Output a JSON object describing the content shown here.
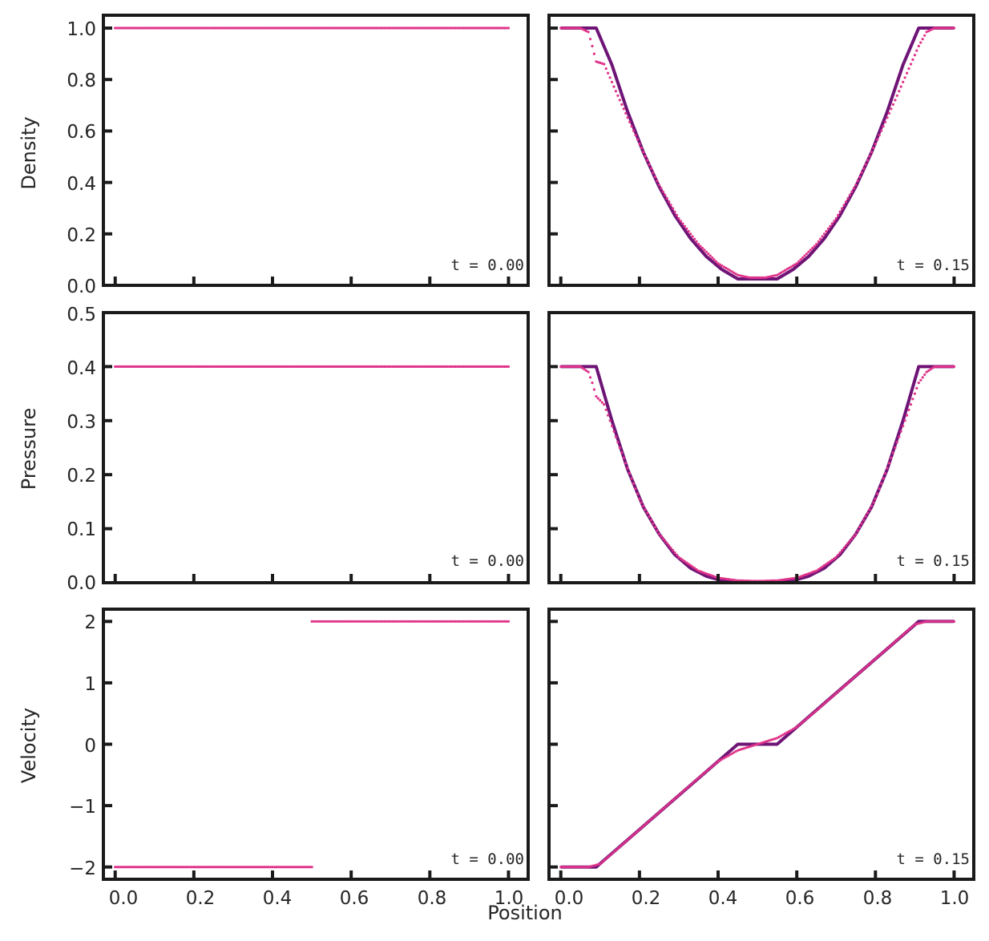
{
  "figure": {
    "xlabel": "Position",
    "colors": {
      "exact": "#6e1476",
      "numerical": "#e0338a",
      "frame": "#1a1a1a",
      "text": "#262626"
    },
    "x_ticks": [
      "0.0",
      "0.2",
      "0.4",
      "0.6",
      "0.8",
      "1.0"
    ],
    "rows": [
      {
        "ylabel": "Density",
        "y_ticks": [
          "0.0",
          "0.2",
          "0.4",
          "0.6",
          "0.8",
          "1.0"
        ]
      },
      {
        "ylabel": "Pressure",
        "y_ticks": [
          "0.0",
          "0.1",
          "0.2",
          "0.3",
          "0.4",
          "0.5"
        ]
      },
      {
        "ylabel": "Velocity",
        "y_ticks": [
          "−2",
          "−1",
          "0",
          "1",
          "2"
        ]
      }
    ],
    "time_labels": {
      "p00": "t = 0.00",
      "p01": "t = 0.15",
      "p10": "t = 0.00",
      "p11": "t = 0.15",
      "p20": "t = 0.00",
      "p21": "t = 0.15"
    }
  },
  "chart_data": {
    "type": "line",
    "description_free": true,
    "xlim": [
      -0.03,
      1.05
    ],
    "shared_x": true,
    "shared_y_rows": true,
    "panels": [
      {
        "id": "p00",
        "row": 0,
        "col": 0,
        "ylim": [
          0,
          1.05
        ],
        "exact": [
          [
            0,
            1.0
          ],
          [
            1.0,
            1.0
          ]
        ],
        "numerical": [
          [
            0,
            1.0
          ],
          [
            1.0,
            1.0
          ]
        ]
      },
      {
        "id": "p01",
        "row": 0,
        "col": 1,
        "ylim": [
          0,
          1.05
        ],
        "exact": [
          [
            0,
            1.0
          ],
          [
            0.09,
            1.0
          ],
          [
            0.13,
            0.857
          ],
          [
            0.17,
            0.675
          ],
          [
            0.21,
            0.517
          ],
          [
            0.25,
            0.384
          ],
          [
            0.29,
            0.272
          ],
          [
            0.33,
            0.182
          ],
          [
            0.37,
            0.112
          ],
          [
            0.41,
            0.061
          ],
          [
            0.45,
            0.025
          ],
          [
            0.55,
            0.025
          ],
          [
            0.59,
            0.061
          ],
          [
            0.63,
            0.112
          ],
          [
            0.67,
            0.182
          ],
          [
            0.71,
            0.272
          ],
          [
            0.75,
            0.384
          ],
          [
            0.79,
            0.517
          ],
          [
            0.83,
            0.675
          ],
          [
            0.87,
            0.857
          ],
          [
            0.91,
            1.0
          ],
          [
            1.0,
            1.0
          ]
        ],
        "numerical": [
          [
            0,
            1.0
          ],
          [
            0.05,
            1.0
          ],
          [
            0.07,
            0.985
          ],
          [
            0.08,
            0.93
          ],
          [
            0.09,
            0.87
          ],
          [
            0.11,
            0.86
          ],
          [
            0.15,
            0.72
          ],
          [
            0.2,
            0.55
          ],
          [
            0.25,
            0.39
          ],
          [
            0.3,
            0.26
          ],
          [
            0.35,
            0.16
          ],
          [
            0.4,
            0.085
          ],
          [
            0.45,
            0.04
          ],
          [
            0.48,
            0.03
          ],
          [
            0.52,
            0.03
          ],
          [
            0.55,
            0.04
          ],
          [
            0.6,
            0.085
          ],
          [
            0.65,
            0.16
          ],
          [
            0.7,
            0.26
          ],
          [
            0.75,
            0.39
          ],
          [
            0.8,
            0.55
          ],
          [
            0.85,
            0.72
          ],
          [
            0.89,
            0.86
          ],
          [
            0.91,
            0.93
          ],
          [
            0.93,
            0.985
          ],
          [
            0.95,
            1.0
          ],
          [
            1.0,
            1.0
          ]
        ]
      },
      {
        "id": "p10",
        "row": 1,
        "col": 0,
        "ylim": [
          0,
          0.5
        ],
        "exact": [
          [
            0,
            0.4
          ],
          [
            1.0,
            0.4
          ]
        ],
        "numerical": [
          [
            0,
            0.4
          ],
          [
            1.0,
            0.4
          ]
        ]
      },
      {
        "id": "p11",
        "row": 1,
        "col": 1,
        "ylim": [
          0,
          0.5
        ],
        "exact": [
          [
            0,
            0.4
          ],
          [
            0.09,
            0.4
          ],
          [
            0.13,
            0.3
          ],
          [
            0.17,
            0.21
          ],
          [
            0.21,
            0.14
          ],
          [
            0.25,
            0.09
          ],
          [
            0.29,
            0.052
          ],
          [
            0.33,
            0.027
          ],
          [
            0.37,
            0.012
          ],
          [
            0.41,
            0.004
          ],
          [
            0.45,
            0.001
          ],
          [
            0.55,
            0.001
          ],
          [
            0.59,
            0.004
          ],
          [
            0.63,
            0.012
          ],
          [
            0.67,
            0.027
          ],
          [
            0.71,
            0.052
          ],
          [
            0.75,
            0.09
          ],
          [
            0.79,
            0.14
          ],
          [
            0.83,
            0.21
          ],
          [
            0.87,
            0.3
          ],
          [
            0.91,
            0.4
          ],
          [
            1.0,
            0.4
          ]
        ],
        "numerical": [
          [
            0,
            0.4
          ],
          [
            0.05,
            0.4
          ],
          [
            0.07,
            0.39
          ],
          [
            0.08,
            0.37
          ],
          [
            0.09,
            0.345
          ],
          [
            0.11,
            0.33
          ],
          [
            0.15,
            0.25
          ],
          [
            0.2,
            0.155
          ],
          [
            0.25,
            0.09
          ],
          [
            0.3,
            0.047
          ],
          [
            0.35,
            0.022
          ],
          [
            0.4,
            0.009
          ],
          [
            0.45,
            0.004
          ],
          [
            0.5,
            0.003
          ],
          [
            0.55,
            0.004
          ],
          [
            0.6,
            0.009
          ],
          [
            0.65,
            0.022
          ],
          [
            0.7,
            0.047
          ],
          [
            0.75,
            0.09
          ],
          [
            0.8,
            0.155
          ],
          [
            0.85,
            0.25
          ],
          [
            0.89,
            0.33
          ],
          [
            0.91,
            0.37
          ],
          [
            0.93,
            0.39
          ],
          [
            0.95,
            0.4
          ],
          [
            1.0,
            0.4
          ]
        ]
      },
      {
        "id": "p20",
        "row": 2,
        "col": 0,
        "ylim": [
          -2.2,
          2.2
        ],
        "exact": [
          [
            0,
            -2.0
          ],
          [
            0.5,
            -2.0
          ],
          [
            0.5,
            2.0
          ],
          [
            1.0,
            2.0
          ]
        ],
        "numerical_segments": [
          [
            [
              0,
              -2.0
            ],
            [
              0.5,
              -2.0
            ]
          ],
          [
            [
              0.5,
              2.0
            ],
            [
              1.0,
              2.0
            ]
          ]
        ]
      },
      {
        "id": "p21",
        "row": 2,
        "col": 1,
        "ylim": [
          -2.2,
          2.2
        ],
        "exact": [
          [
            0,
            -2.0
          ],
          [
            0.09,
            -2.0
          ],
          [
            0.45,
            0.0
          ],
          [
            0.55,
            0.0
          ],
          [
            0.91,
            2.0
          ],
          [
            1.0,
            2.0
          ]
        ],
        "numerical": [
          [
            0,
            -2.0
          ],
          [
            0.07,
            -2.0
          ],
          [
            0.1,
            -1.95
          ],
          [
            0.15,
            -1.67
          ],
          [
            0.2,
            -1.39
          ],
          [
            0.25,
            -1.11
          ],
          [
            0.3,
            -0.83
          ],
          [
            0.35,
            -0.55
          ],
          [
            0.4,
            -0.28
          ],
          [
            0.45,
            -0.1
          ],
          [
            0.5,
            0.0
          ],
          [
            0.55,
            0.1
          ],
          [
            0.6,
            0.28
          ],
          [
            0.65,
            0.55
          ],
          [
            0.7,
            0.83
          ],
          [
            0.75,
            1.11
          ],
          [
            0.8,
            1.39
          ],
          [
            0.85,
            1.67
          ],
          [
            0.9,
            1.95
          ],
          [
            0.93,
            2.0
          ],
          [
            1.0,
            2.0
          ]
        ]
      }
    ]
  }
}
